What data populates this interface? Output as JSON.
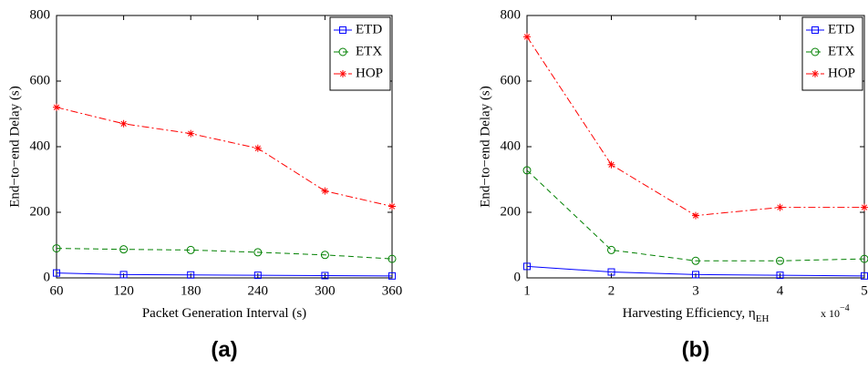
{
  "chart_data": [
    {
      "type": "line",
      "panel_label": "(a)",
      "xlabel": "Packet Generation Interval (s)",
      "ylabel": "End−to−end Delay (s)",
      "x": [
        60,
        120,
        180,
        240,
        300,
        360
      ],
      "xlim": [
        60,
        360
      ],
      "xticks": [
        60,
        120,
        180,
        240,
        300,
        360
      ],
      "ylim": [
        0,
        800
      ],
      "yticks": [
        0,
        200,
        400,
        600,
        800
      ],
      "legend": "upper right",
      "series": [
        {
          "name": "ETD",
          "color": "#0000ff",
          "marker": "square",
          "linestyle": "solid",
          "values": [
            15,
            10,
            9,
            8,
            7,
            6
          ]
        },
        {
          "name": "ETX",
          "color": "#008000",
          "marker": "circle",
          "linestyle": "dashed",
          "values": [
            90,
            87,
            85,
            78,
            70,
            58
          ]
        },
        {
          "name": "HOP",
          "color": "#ff0000",
          "marker": "star",
          "linestyle": "dashdot",
          "values": [
            520,
            470,
            440,
            395,
            265,
            218
          ]
        }
      ]
    },
    {
      "type": "line",
      "panel_label": "(b)",
      "xlabel": "Harvesting Efficiency, η",
      "xlabel_subscript": "EH",
      "x_multiplier": "x 10",
      "x_multiplier_exponent": "−4",
      "ylabel": "End−to−end Delay (s)",
      "x": [
        1,
        2,
        3,
        4,
        5
      ],
      "xlim": [
        1,
        5
      ],
      "xticks": [
        1,
        2,
        3,
        4,
        5
      ],
      "ylim": [
        0,
        800
      ],
      "yticks": [
        0,
        200,
        400,
        600,
        800
      ],
      "legend": "upper right",
      "series": [
        {
          "name": "ETD",
          "color": "#0000ff",
          "marker": "square",
          "linestyle": "solid",
          "values": [
            35,
            18,
            10,
            8,
            6
          ]
        },
        {
          "name": "ETX",
          "color": "#008000",
          "marker": "circle",
          "linestyle": "dashed",
          "values": [
            328,
            85,
            52,
            52,
            58
          ]
        },
        {
          "name": "HOP",
          "color": "#ff0000",
          "marker": "star",
          "linestyle": "dashdot",
          "values": [
            735,
            345,
            190,
            215,
            215
          ]
        }
      ]
    }
  ]
}
